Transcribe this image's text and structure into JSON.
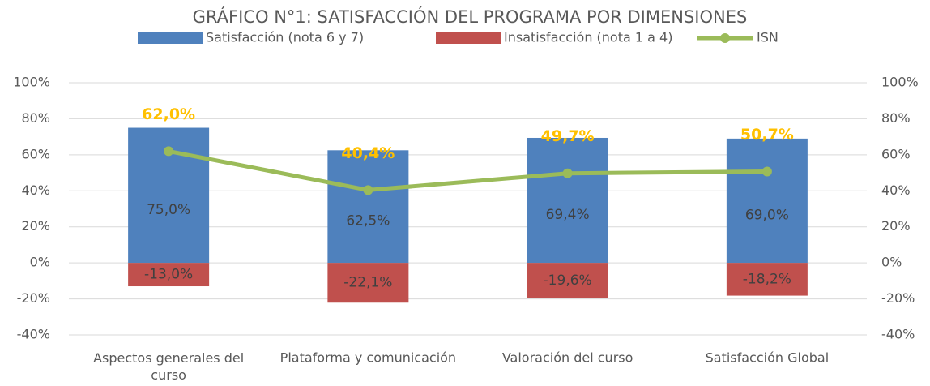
{
  "chart_data": {
    "type": "bar-line",
    "title": "GRÁFICO N°1: SATISFACCIÓN DEL PROGRAMA POR DIMENSIONES",
    "categories": [
      "Aspectos generales del curso",
      "Plataforma y comunicación",
      "Valoración del curso",
      "Satisfacción Global"
    ],
    "series": [
      {
        "name": "Satisfacción (nota 6 y 7)",
        "type": "bar",
        "color": "#4f81bd",
        "values": [
          75.0,
          62.5,
          69.4,
          69.0
        ],
        "value_labels": [
          "75,0%",
          "62,5%",
          "69,4%",
          "69,0%"
        ]
      },
      {
        "name": "Insatisfacción (nota 1 a 4)",
        "type": "bar",
        "color": "#c0504d",
        "values": [
          -13.0,
          -22.1,
          -19.6,
          -18.2
        ],
        "value_labels": [
          "-13,0%",
          "-22,1%",
          "-19,6%",
          "-18,2%"
        ]
      },
      {
        "name": "ISN",
        "type": "line",
        "axis": "y2",
        "color": "#9bbb59",
        "values": [
          62.0,
          40.4,
          49.7,
          50.7
        ],
        "value_labels": [
          "62,0%",
          "40,4%",
          "49,7%",
          "50,7%"
        ]
      }
    ],
    "ylim": [
      -40,
      100
    ],
    "yticks": [
      {
        "value": -40,
        "label": "-40%"
      },
      {
        "value": -20,
        "label": "-20%"
      },
      {
        "value": 0,
        "label": "0%"
      },
      {
        "value": 20,
        "label": "20%"
      },
      {
        "value": 40,
        "label": "40%"
      },
      {
        "value": 60,
        "label": "60%"
      },
      {
        "value": 80,
        "label": "80%"
      },
      {
        "value": 100,
        "label": "100%"
      }
    ],
    "y2lim": [
      -40,
      100
    ],
    "y2ticks": [
      {
        "value": -40,
        "label": "-40%"
      },
      {
        "value": -20,
        "label": "-20%"
      },
      {
        "value": 0,
        "label": "0%"
      },
      {
        "value": 20,
        "label": "20%"
      },
      {
        "value": 40,
        "label": "40%"
      },
      {
        "value": 60,
        "label": "60%"
      },
      {
        "value": 80,
        "label": "80%"
      },
      {
        "value": 100,
        "label": "100%"
      }
    ],
    "grid": true,
    "legend": "top"
  }
}
